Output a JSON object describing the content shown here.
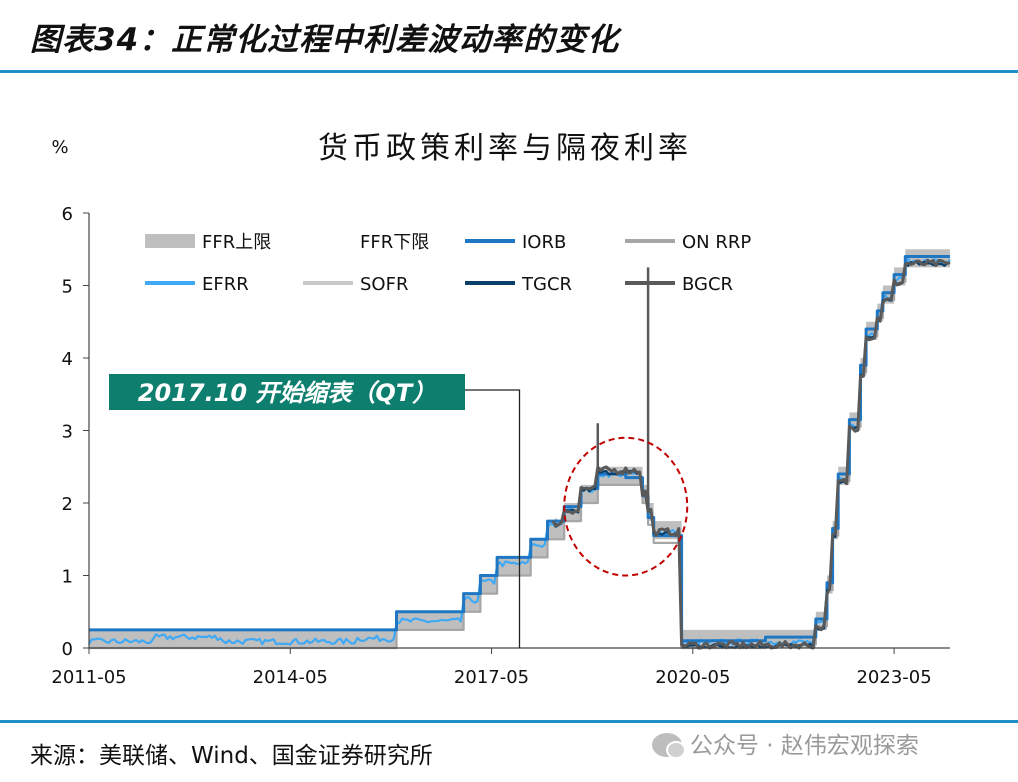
{
  "header": {
    "title": "图表34：正常化过程中利差波动率的变化"
  },
  "footer": {
    "source": "来源：美联储、Wind、国金证券研究所",
    "watermark": "公众号 · 赵伟宏观探索",
    "watermark_icon": "wechat-icon"
  },
  "chart_data": {
    "type": "line",
    "title": "货币政策利率与隔夜利率",
    "ylabel": "%",
    "xlabel": "",
    "xlim": [
      "2011-05",
      "2024-03"
    ],
    "ylim": [
      0,
      6
    ],
    "yticks": [
      0,
      1,
      2,
      3,
      4,
      5,
      6
    ],
    "xticks": [
      "2011-05",
      "2014-05",
      "2017-05",
      "2020-05",
      "2023-05"
    ],
    "grid": false,
    "legend_position": "top-left, inside plot, 2 rows x 4 columns",
    "annotation": {
      "text": "2017.10 开始缩表（QT）",
      "x": "2017-10",
      "bg_color": "#0e7f6e",
      "text_color": "#ffffff"
    },
    "highlight": {
      "shape": "ellipse",
      "style": "dashed",
      "color": "#c00000",
      "x_range": [
        "2018-06",
        "2020-04"
      ],
      "y_range": [
        1.0,
        2.9
      ]
    },
    "series": [
      {
        "name": "FFR上限",
        "color": "#bfbfbf",
        "style": "band-upper",
        "points": [
          [
            "2011-05",
            0.25
          ],
          [
            "2015-12",
            0.5
          ],
          [
            "2016-12",
            0.75
          ],
          [
            "2017-03",
            1.0
          ],
          [
            "2017-06",
            1.25
          ],
          [
            "2017-12",
            1.5
          ],
          [
            "2018-03",
            1.75
          ],
          [
            "2018-06",
            2.0
          ],
          [
            "2018-09",
            2.25
          ],
          [
            "2018-12",
            2.5
          ],
          [
            "2019-08",
            2.25
          ],
          [
            "2019-09",
            2.0
          ],
          [
            "2019-10",
            1.75
          ],
          [
            "2020-03",
            0.25
          ],
          [
            "2022-03",
            0.5
          ],
          [
            "2022-05",
            1.0
          ],
          [
            "2022-06",
            1.75
          ],
          [
            "2022-07",
            2.5
          ],
          [
            "2022-09",
            3.25
          ],
          [
            "2022-11",
            4.0
          ],
          [
            "2022-12",
            4.5
          ],
          [
            "2023-02",
            4.75
          ],
          [
            "2023-03",
            5.0
          ],
          [
            "2023-05",
            5.25
          ],
          [
            "2023-07",
            5.5
          ],
          [
            "2024-03",
            5.5
          ]
        ]
      },
      {
        "name": "FFR下限",
        "color": "#ffffff",
        "style": "band-lower",
        "points": [
          [
            "2011-05",
            0.0
          ],
          [
            "2015-12",
            0.25
          ],
          [
            "2016-12",
            0.5
          ],
          [
            "2017-03",
            0.75
          ],
          [
            "2017-06",
            1.0
          ],
          [
            "2017-12",
            1.25
          ],
          [
            "2018-03",
            1.5
          ],
          [
            "2018-06",
            1.75
          ],
          [
            "2018-09",
            2.0
          ],
          [
            "2018-12",
            2.25
          ],
          [
            "2019-08",
            2.0
          ],
          [
            "2019-09",
            1.75
          ],
          [
            "2019-10",
            1.5
          ],
          [
            "2020-03",
            0.0
          ],
          [
            "2022-03",
            0.25
          ],
          [
            "2022-05",
            0.75
          ],
          [
            "2022-06",
            1.5
          ],
          [
            "2022-07",
            2.25
          ],
          [
            "2022-09",
            3.0
          ],
          [
            "2022-11",
            3.75
          ],
          [
            "2022-12",
            4.25
          ],
          [
            "2023-02",
            4.5
          ],
          [
            "2023-03",
            4.75
          ],
          [
            "2023-05",
            5.0
          ],
          [
            "2023-07",
            5.25
          ],
          [
            "2024-03",
            5.25
          ]
        ]
      },
      {
        "name": "IORB",
        "color": "#1f77c4",
        "style": "step",
        "points": [
          [
            "2011-05",
            0.25
          ],
          [
            "2015-12",
            0.5
          ],
          [
            "2016-12",
            0.75
          ],
          [
            "2017-03",
            1.0
          ],
          [
            "2017-06",
            1.25
          ],
          [
            "2017-12",
            1.5
          ],
          [
            "2018-03",
            1.75
          ],
          [
            "2018-06",
            1.95
          ],
          [
            "2018-09",
            2.2
          ],
          [
            "2018-12",
            2.4
          ],
          [
            "2019-05",
            2.35
          ],
          [
            "2019-08",
            2.1
          ],
          [
            "2019-09",
            1.8
          ],
          [
            "2019-10",
            1.55
          ],
          [
            "2020-03",
            0.1
          ],
          [
            "2021-06",
            0.15
          ],
          [
            "2022-03",
            0.4
          ],
          [
            "2022-05",
            0.9
          ],
          [
            "2022-06",
            1.65
          ],
          [
            "2022-07",
            2.4
          ],
          [
            "2022-09",
            3.15
          ],
          [
            "2022-11",
            3.9
          ],
          [
            "2022-12",
            4.4
          ],
          [
            "2023-02",
            4.65
          ],
          [
            "2023-03",
            4.9
          ],
          [
            "2023-05",
            5.15
          ],
          [
            "2023-07",
            5.4
          ],
          [
            "2024-03",
            5.4
          ]
        ]
      },
      {
        "name": "ON RRP",
        "color": "#a6a6a6",
        "style": "step",
        "points": [
          [
            "2011-05",
            0.0
          ],
          [
            "2015-12",
            0.25
          ],
          [
            "2016-12",
            0.5
          ],
          [
            "2017-03",
            0.75
          ],
          [
            "2017-06",
            1.0
          ],
          [
            "2017-12",
            1.25
          ],
          [
            "2018-03",
            1.5
          ],
          [
            "2018-06",
            1.75
          ],
          [
            "2018-09",
            2.0
          ],
          [
            "2018-12",
            2.25
          ],
          [
            "2019-08",
            2.0
          ],
          [
            "2019-09",
            1.7
          ],
          [
            "2019-10",
            1.45
          ],
          [
            "2020-03",
            0.0
          ],
          [
            "2021-06",
            0.05
          ],
          [
            "2022-03",
            0.3
          ],
          [
            "2022-05",
            0.8
          ],
          [
            "2022-06",
            1.55
          ],
          [
            "2022-07",
            2.3
          ],
          [
            "2022-09",
            3.05
          ],
          [
            "2022-11",
            3.8
          ],
          [
            "2022-12",
            4.3
          ],
          [
            "2023-02",
            4.55
          ],
          [
            "2023-03",
            4.8
          ],
          [
            "2023-05",
            5.05
          ],
          [
            "2023-07",
            5.3
          ],
          [
            "2024-03",
            5.3
          ]
        ]
      },
      {
        "name": "EFRR",
        "color": "#3fa9f5",
        "style": "noisy",
        "points": [
          [
            "2011-05",
            0.09
          ],
          [
            "2012-05",
            0.15
          ],
          [
            "2013-05",
            0.09
          ],
          [
            "2014-05",
            0.09
          ],
          [
            "2015-05",
            0.13
          ],
          [
            "2015-12",
            0.37
          ],
          [
            "2016-12",
            0.66
          ],
          [
            "2017-03",
            0.91
          ],
          [
            "2017-06",
            1.16
          ],
          [
            "2017-12",
            1.42
          ],
          [
            "2018-03",
            1.68
          ],
          [
            "2018-06",
            1.91
          ],
          [
            "2018-09",
            2.18
          ],
          [
            "2018-12",
            2.4
          ],
          [
            "2019-08",
            2.13
          ],
          [
            "2019-09",
            1.9
          ],
          [
            "2019-10",
            1.6
          ],
          [
            "2020-03",
            0.08
          ],
          [
            "2022-03",
            0.33
          ],
          [
            "2022-05",
            0.83
          ],
          [
            "2022-06",
            1.58
          ],
          [
            "2022-07",
            2.33
          ],
          [
            "2022-09",
            3.08
          ],
          [
            "2022-11",
            3.83
          ],
          [
            "2022-12",
            4.33
          ],
          [
            "2023-02",
            4.58
          ],
          [
            "2023-03",
            4.83
          ],
          [
            "2023-05",
            5.08
          ],
          [
            "2023-07",
            5.33
          ],
          [
            "2024-03",
            5.33
          ]
        ]
      },
      {
        "name": "SOFR",
        "color": "#c8c8c8",
        "style": "noisy",
        "points": [
          [
            "2018-04",
            1.75
          ],
          [
            "2018-06",
            1.9
          ],
          [
            "2018-09",
            2.2
          ],
          [
            "2018-12",
            2.45
          ],
          [
            "2019-08",
            2.15
          ],
          [
            "2019-09",
            1.9
          ],
          [
            "2019-10",
            1.6
          ],
          [
            "2020-03",
            0.05
          ],
          [
            "2022-03",
            0.3
          ],
          [
            "2022-05",
            0.8
          ],
          [
            "2022-06",
            1.55
          ],
          [
            "2022-07",
            2.3
          ],
          [
            "2022-09",
            3.05
          ],
          [
            "2022-11",
            3.8
          ],
          [
            "2022-12",
            4.3
          ],
          [
            "2023-02",
            4.55
          ],
          [
            "2023-03",
            4.8
          ],
          [
            "2023-05",
            5.05
          ],
          [
            "2023-07",
            5.31
          ],
          [
            "2024-03",
            5.31
          ]
        ]
      },
      {
        "name": "TGCR",
        "color": "#0b3f6b",
        "style": "noisy",
        "points": [
          [
            "2018-04",
            1.7
          ],
          [
            "2018-06",
            1.88
          ],
          [
            "2018-09",
            2.18
          ],
          [
            "2018-12",
            2.42
          ],
          [
            "2019-08",
            2.12
          ],
          [
            "2019-09",
            1.88
          ],
          [
            "2019-10",
            1.58
          ],
          [
            "2020-03",
            0.03
          ],
          [
            "2022-03",
            0.28
          ],
          [
            "2022-05",
            0.78
          ],
          [
            "2022-06",
            1.53
          ],
          [
            "2022-07",
            2.28
          ],
          [
            "2022-09",
            3.03
          ],
          [
            "2022-11",
            3.78
          ],
          [
            "2022-12",
            4.28
          ],
          [
            "2023-02",
            4.53
          ],
          [
            "2023-03",
            4.78
          ],
          [
            "2023-05",
            5.03
          ],
          [
            "2023-07",
            5.3
          ],
          [
            "2024-03",
            5.3
          ]
        ]
      },
      {
        "name": "BGCR",
        "color": "#595959",
        "style": "spiky",
        "points": [
          [
            "2018-04",
            1.72
          ],
          [
            "2018-06",
            1.9
          ],
          [
            "2018-09",
            2.2
          ],
          [
            "2018-12",
            2.45
          ],
          [
            "2019-08",
            2.14
          ],
          [
            "2019-09",
            1.9
          ],
          [
            "2019-10",
            1.6
          ],
          [
            "2020-03",
            0.04
          ],
          [
            "2022-03",
            0.29
          ],
          [
            "2022-05",
            0.79
          ],
          [
            "2022-06",
            1.54
          ],
          [
            "2022-07",
            2.29
          ],
          [
            "2022-09",
            3.04
          ],
          [
            "2022-11",
            3.79
          ],
          [
            "2022-12",
            4.29
          ],
          [
            "2023-02",
            4.54
          ],
          [
            "2023-03",
            4.79
          ],
          [
            "2023-05",
            5.04
          ],
          [
            "2023-07",
            5.3
          ],
          [
            "2024-03",
            5.3
          ]
        ],
        "spikes": [
          [
            "2018-12",
            3.1
          ],
          [
            "2019-09",
            5.25
          ]
        ]
      }
    ]
  }
}
